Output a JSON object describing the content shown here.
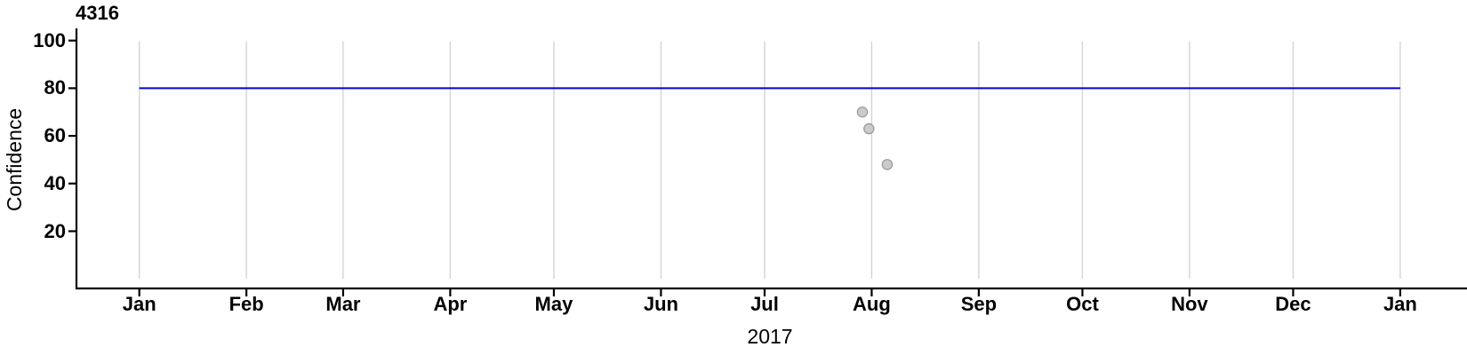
{
  "chart_data": {
    "type": "scatter",
    "title": "4316",
    "xlabel": "2017",
    "ylabel": "Confidence",
    "x_axis": {
      "range": "Jan 2017 - Jan 2018",
      "ticks": [
        {
          "label": "Jan",
          "day": 0
        },
        {
          "label": "Feb",
          "day": 31
        },
        {
          "label": "Mar",
          "day": 59
        },
        {
          "label": "Apr",
          "day": 90
        },
        {
          "label": "May",
          "day": 120
        },
        {
          "label": "Jun",
          "day": 151
        },
        {
          "label": "Jul",
          "day": 181
        },
        {
          "label": "Aug",
          "day": 212
        },
        {
          "label": "Sep",
          "day": 243
        },
        {
          "label": "Oct",
          "day": 273
        },
        {
          "label": "Nov",
          "day": 304
        },
        {
          "label": "Dec",
          "day": 334
        },
        {
          "label": "Jan",
          "day": 365
        }
      ]
    },
    "y_axis": {
      "ticks": [
        100,
        80,
        60,
        40,
        20
      ],
      "ylim": [
        0,
        100
      ]
    },
    "grid": {
      "vertical_monthly": true,
      "horizontal": false,
      "color": "#d4d4d4"
    },
    "reference_line": {
      "orientation": "horizontal",
      "value": 80,
      "x_start_day": 0,
      "x_end_day": 365,
      "color": "#0000d5"
    },
    "points": [
      {
        "date": "2017-07-29",
        "day": 209.3,
        "value": 70
      },
      {
        "date": "2017-07-31",
        "day": 211.2,
        "value": 63
      },
      {
        "date": "2017-08-05",
        "day": 216.5,
        "value": 48
      }
    ],
    "point_style": {
      "fill": "#cbcbcb",
      "stroke": "#9c9c9c"
    },
    "legend": null
  }
}
